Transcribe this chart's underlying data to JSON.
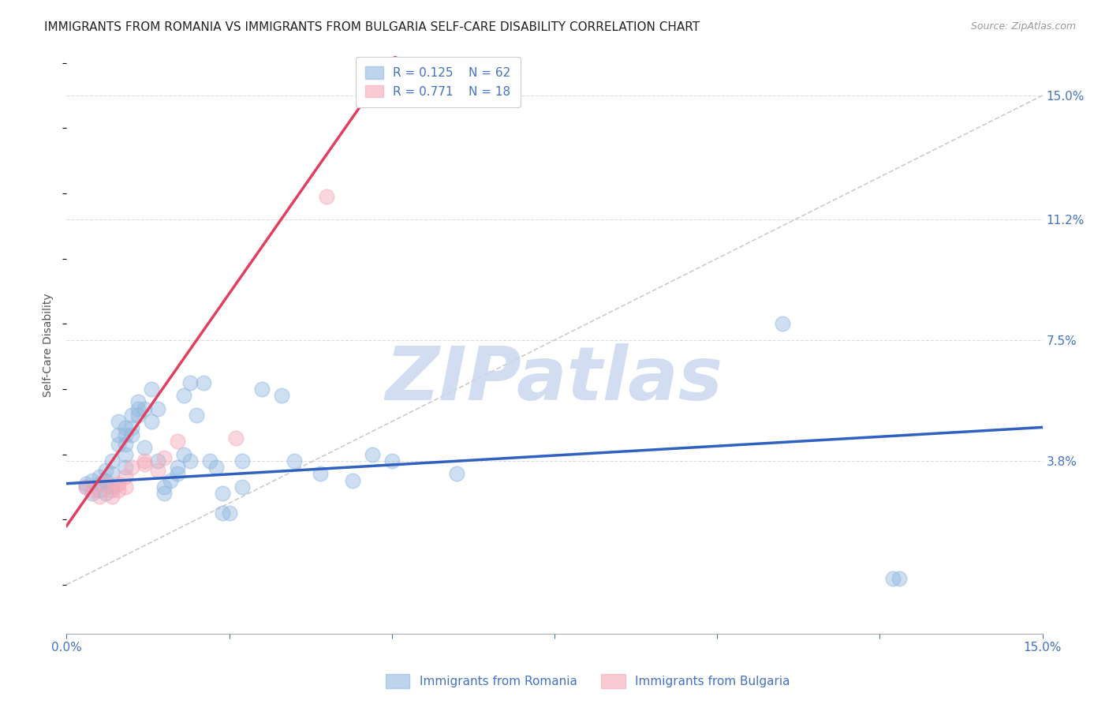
{
  "title": "IMMIGRANTS FROM ROMANIA VS IMMIGRANTS FROM BULGARIA SELF-CARE DISABILITY CORRELATION CHART",
  "source": "Source: ZipAtlas.com",
  "ylabel": "Self-Care Disability",
  "xlim": [
    0.0,
    0.15
  ],
  "ylim": [
    -0.015,
    0.162
  ],
  "y_tick_labels_right": [
    "3.8%",
    "7.5%",
    "11.2%",
    "15.0%"
  ],
  "y_tick_values_right": [
    0.038,
    0.075,
    0.112,
    0.15
  ],
  "romania_color": "#92b8e0",
  "bulgaria_color": "#f4a8b8",
  "romania_line_color": "#3060c0",
  "bulgaria_line_color": "#e04060",
  "R_romania": 0.125,
  "N_romania": 62,
  "R_bulgaria": 0.771,
  "N_bulgaria": 18,
  "background_color": "#ffffff",
  "grid_color": "#dddddd",
  "romania_scatter": [
    [
      0.003,
      0.03
    ],
    [
      0.004,
      0.028
    ],
    [
      0.004,
      0.032
    ],
    [
      0.005,
      0.031
    ],
    [
      0.005,
      0.029
    ],
    [
      0.005,
      0.033
    ],
    [
      0.006,
      0.035
    ],
    [
      0.006,
      0.032
    ],
    [
      0.006,
      0.028
    ],
    [
      0.007,
      0.038
    ],
    [
      0.007,
      0.034
    ],
    [
      0.007,
      0.03
    ],
    [
      0.008,
      0.05
    ],
    [
      0.008,
      0.046
    ],
    [
      0.008,
      0.043
    ],
    [
      0.009,
      0.048
    ],
    [
      0.009,
      0.046
    ],
    [
      0.009,
      0.043
    ],
    [
      0.009,
      0.04
    ],
    [
      0.009,
      0.036
    ],
    [
      0.01,
      0.052
    ],
    [
      0.01,
      0.048
    ],
    [
      0.01,
      0.046
    ],
    [
      0.011,
      0.056
    ],
    [
      0.011,
      0.054
    ],
    [
      0.011,
      0.052
    ],
    [
      0.012,
      0.054
    ],
    [
      0.012,
      0.042
    ],
    [
      0.013,
      0.06
    ],
    [
      0.013,
      0.05
    ],
    [
      0.014,
      0.054
    ],
    [
      0.014,
      0.038
    ],
    [
      0.015,
      0.03
    ],
    [
      0.015,
      0.028
    ],
    [
      0.016,
      0.032
    ],
    [
      0.017,
      0.036
    ],
    [
      0.017,
      0.034
    ],
    [
      0.018,
      0.058
    ],
    [
      0.018,
      0.04
    ],
    [
      0.019,
      0.062
    ],
    [
      0.019,
      0.038
    ],
    [
      0.02,
      0.052
    ],
    [
      0.021,
      0.062
    ],
    [
      0.022,
      0.038
    ],
    [
      0.023,
      0.036
    ],
    [
      0.024,
      0.028
    ],
    [
      0.024,
      0.022
    ],
    [
      0.025,
      0.022
    ],
    [
      0.027,
      0.038
    ],
    [
      0.027,
      0.03
    ],
    [
      0.03,
      0.06
    ],
    [
      0.033,
      0.058
    ],
    [
      0.035,
      0.038
    ],
    [
      0.039,
      0.034
    ],
    [
      0.044,
      0.032
    ],
    [
      0.047,
      0.04
    ],
    [
      0.05,
      0.038
    ],
    [
      0.06,
      0.034
    ],
    [
      0.11,
      0.08
    ],
    [
      0.127,
      0.002
    ],
    [
      0.128,
      0.002
    ],
    [
      0.003,
      0.031
    ]
  ],
  "bulgaria_scatter": [
    [
      0.003,
      0.03
    ],
    [
      0.004,
      0.029
    ],
    [
      0.005,
      0.027
    ],
    [
      0.006,
      0.031
    ],
    [
      0.007,
      0.029
    ],
    [
      0.007,
      0.027
    ],
    [
      0.008,
      0.031
    ],
    [
      0.008,
      0.029
    ],
    [
      0.009,
      0.033
    ],
    [
      0.009,
      0.03
    ],
    [
      0.01,
      0.036
    ],
    [
      0.012,
      0.038
    ],
    [
      0.012,
      0.037
    ],
    [
      0.014,
      0.035
    ],
    [
      0.015,
      0.039
    ],
    [
      0.017,
      0.044
    ],
    [
      0.026,
      0.045
    ],
    [
      0.04,
      0.119
    ]
  ],
  "romania_slope": 0.115,
  "romania_intercept": 0.031,
  "bulgaria_slope": 2.85,
  "bulgaria_intercept": 0.018,
  "diag_line_color": "#cccccc",
  "watermark": "ZIPatlas",
  "watermark_color": "#ccd8ef",
  "title_fontsize": 11,
  "axis_label_fontsize": 10,
  "tick_label_fontsize": 11,
  "legend_fontsize": 11,
  "scatter_size": 180,
  "scatter_alpha": 0.45
}
